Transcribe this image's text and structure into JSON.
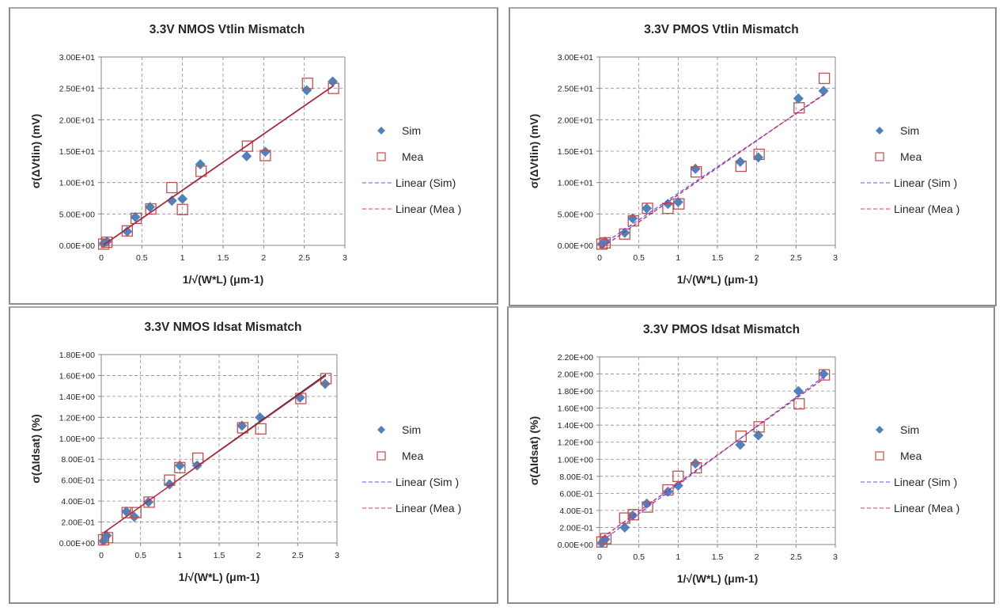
{
  "colors": {
    "sim_marker": "#4f81bd",
    "mea_marker": "#c0504d",
    "linear_sim": "#5a5aff",
    "linear_mea": "#e8334a",
    "grid": "#8c8c8c",
    "axis": "#868686",
    "text": "#262626"
  },
  "chart_data": [
    {
      "id": "nmos-vtlin",
      "type": "scatter",
      "title": "3.3V NMOS Vtlin Mismatch",
      "xlabel": "1/√(W*L) (μm-1)",
      "ylabel": "σ(ΔVtlin) (mV)",
      "xlim": [
        0,
        3
      ],
      "ylim": [
        0,
        30
      ],
      "xticks": [
        0,
        0.5,
        1,
        1.5,
        2,
        2.5,
        3
      ],
      "xtick_labels": [
        "0",
        "0.5",
        "1",
        "1.5",
        "2",
        "2.5",
        "3"
      ],
      "yticks": [
        0,
        5,
        10,
        15,
        20,
        25,
        30
      ],
      "ytick_labels": [
        "0.00E+00",
        "5.00E+00",
        "1.00E+01",
        "1.50E+01",
        "2.00E+01",
        "2.50E+01",
        "3.00E+01"
      ],
      "grid": true,
      "legend_position": "right",
      "trendline_style": "solid",
      "series": [
        {
          "name": "Sim",
          "marker": "diamond",
          "x": [
            0.03,
            0.07,
            0.32,
            0.42,
            0.6,
            0.87,
            1.0,
            1.22,
            1.79,
            2.02,
            2.53,
            2.85
          ],
          "y": [
            0.3,
            0.6,
            2.2,
            4.5,
            6.1,
            7.1,
            7.4,
            12.9,
            14.2,
            14.9,
            24.7,
            26.1
          ]
        },
        {
          "name": "Mea",
          "marker": "square",
          "x": [
            0.03,
            0.07,
            0.32,
            0.43,
            0.61,
            0.87,
            1.0,
            1.23,
            1.8,
            2.02,
            2.54,
            2.86
          ],
          "y": [
            0.2,
            0.5,
            2.3,
            4.3,
            5.8,
            9.2,
            5.7,
            11.8,
            15.8,
            14.3,
            25.8,
            25.0
          ]
        }
      ],
      "legend": [
        "Sim",
        "Mea",
        "Linear (Sim)",
        "Linear (Mea )"
      ]
    },
    {
      "id": "pmos-vtlin",
      "type": "scatter",
      "title": "3.3V PMOS Vtlin Mismatch",
      "xlabel": "1/√(W*L) (μm-1)",
      "ylabel": "σ(ΔVtlin) (mV)",
      "xlim": [
        0,
        3
      ],
      "ylim": [
        0,
        30
      ],
      "xticks": [
        0,
        0.5,
        1,
        1.5,
        2,
        2.5,
        3
      ],
      "xtick_labels": [
        "0",
        "0.5",
        "1",
        "1.5",
        "2",
        "2.5",
        "3"
      ],
      "yticks": [
        0,
        5,
        10,
        15,
        20,
        25,
        30
      ],
      "ytick_labels": [
        "0.00E+00",
        "5.00E+00",
        "1.00E+01",
        "1.50E+01",
        "2.00E+01",
        "2.50E+01",
        "3.00E+01"
      ],
      "grid": true,
      "legend_position": "right",
      "trendline_style": "dashed",
      "series": [
        {
          "name": "Sim",
          "marker": "diamond",
          "x": [
            0.03,
            0.07,
            0.32,
            0.42,
            0.6,
            0.87,
            1.0,
            1.22,
            1.79,
            2.02,
            2.53,
            2.85
          ],
          "y": [
            0.2,
            0.6,
            2.0,
            4.3,
            5.9,
            6.6,
            6.9,
            12.2,
            13.3,
            14.0,
            23.4,
            24.6
          ]
        },
        {
          "name": "Mea",
          "marker": "square",
          "x": [
            0.03,
            0.07,
            0.32,
            0.43,
            0.61,
            0.87,
            1.01,
            1.23,
            1.8,
            2.03,
            2.54,
            2.86
          ],
          "y": [
            0.2,
            0.4,
            1.8,
            3.9,
            5.9,
            5.9,
            6.6,
            11.7,
            12.6,
            14.5,
            21.9,
            26.6
          ]
        }
      ],
      "legend": [
        "Sim",
        "Mea",
        "Linear (Sim )",
        "Linear (Mea )"
      ]
    },
    {
      "id": "nmos-idsat",
      "type": "scatter",
      "title": "3.3V NMOS Idsat Mismatch",
      "xlabel": "1/√(W*L) (μm-1)",
      "ylabel": "σ(ΔIdsat) (%)",
      "xlim": [
        0,
        3
      ],
      "ylim": [
        0,
        1.8
      ],
      "xticks": [
        0,
        0.5,
        1,
        1.5,
        2,
        2.5,
        3
      ],
      "xtick_labels": [
        "0",
        "0.5",
        "1",
        "1.5",
        "2",
        "2.5",
        "3"
      ],
      "yticks": [
        0,
        0.2,
        0.4,
        0.6,
        0.8,
        1.0,
        1.2,
        1.4,
        1.6,
        1.8
      ],
      "ytick_labels": [
        "0.00E+00",
        "2.00E-01",
        "4.00E-01",
        "6.00E-01",
        "8.00E-01",
        "1.00E+00",
        "1.20E+00",
        "1.40E+00",
        "1.60E+00",
        "1.80E+00"
      ],
      "grid": true,
      "legend_position": "right",
      "trendline_style": "solid",
      "series": [
        {
          "name": "Sim",
          "marker": "diamond",
          "x": [
            0.03,
            0.07,
            0.32,
            0.42,
            0.6,
            0.87,
            1.0,
            1.22,
            1.79,
            2.02,
            2.53,
            2.85
          ],
          "y": [
            0.02,
            0.07,
            0.3,
            0.25,
            0.39,
            0.56,
            0.74,
            0.74,
            1.12,
            1.2,
            1.39,
            1.52
          ]
        },
        {
          "name": "Mea",
          "marker": "square",
          "x": [
            0.03,
            0.08,
            0.33,
            0.44,
            0.61,
            0.87,
            1.0,
            1.23,
            1.8,
            2.03,
            2.54,
            2.86
          ],
          "y": [
            0.03,
            0.05,
            0.29,
            0.29,
            0.39,
            0.6,
            0.72,
            0.81,
            1.1,
            1.09,
            1.38,
            1.57
          ]
        }
      ],
      "legend": [
        "Sim",
        "Mea",
        "Linear (Sim )",
        "Linear (Mea )"
      ]
    },
    {
      "id": "pmos-idsat",
      "type": "scatter",
      "title": "3.3V PMOS Idsat Mismatch",
      "xlabel": "1/√(W*L) (μm-1)",
      "ylabel": "σ(ΔIdsat) (%)",
      "xlim": [
        0,
        3
      ],
      "ylim": [
        0,
        2.2
      ],
      "xticks": [
        0,
        0.5,
        1,
        1.5,
        2,
        2.5,
        3
      ],
      "xtick_labels": [
        "0",
        "0.5",
        "1",
        "1.5",
        "2",
        "2.5",
        "3"
      ],
      "yticks": [
        0,
        0.2,
        0.4,
        0.6,
        0.8,
        1.0,
        1.2,
        1.4,
        1.6,
        1.8,
        2.0,
        2.2
      ],
      "ytick_labels": [
        "0.00E+00",
        "2.00E-01",
        "4.00E-01",
        "6.00E-01",
        "8.00E-01",
        "1.00E+00",
        "1.20E+00",
        "1.40E+00",
        "1.60E+00",
        "1.80E+00",
        "2.00E+00",
        "2.20E+00"
      ],
      "grid": true,
      "legend_position": "right",
      "trendline_style": "dashed",
      "series": [
        {
          "name": "Sim",
          "marker": "diamond",
          "x": [
            0.03,
            0.07,
            0.32,
            0.42,
            0.6,
            0.87,
            1.0,
            1.22,
            1.79,
            2.02,
            2.53,
            2.85
          ],
          "y": [
            0.02,
            0.06,
            0.2,
            0.34,
            0.48,
            0.62,
            0.69,
            0.95,
            1.17,
            1.28,
            1.8,
            2.0
          ]
        },
        {
          "name": "Mea",
          "marker": "square",
          "x": [
            0.03,
            0.08,
            0.32,
            0.43,
            0.61,
            0.87,
            1.0,
            1.23,
            1.8,
            2.03,
            2.54,
            2.86
          ],
          "y": [
            0.03,
            0.07,
            0.31,
            0.35,
            0.44,
            0.64,
            0.8,
            0.9,
            1.27,
            1.38,
            1.65,
            1.99
          ]
        }
      ],
      "legend": [
        "Sim",
        "Mea",
        "Linear (Sim )",
        "Linear (Mea )"
      ]
    }
  ]
}
